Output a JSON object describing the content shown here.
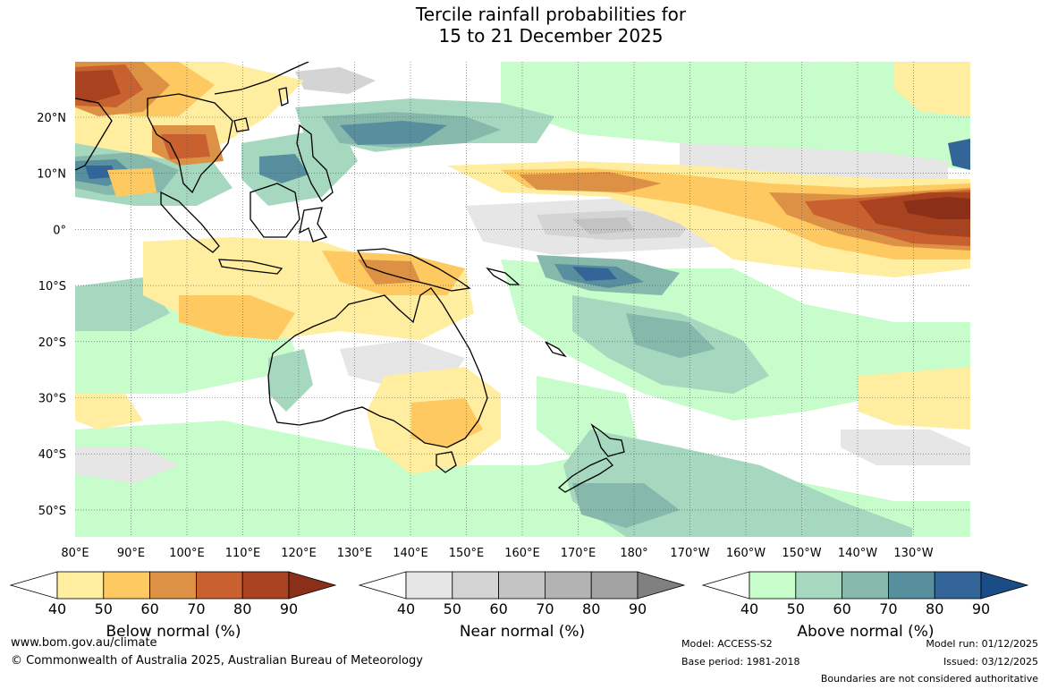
{
  "title": {
    "line1": "Tercile rainfall probabilities for",
    "line2": "15 to 21 December 2025"
  },
  "map": {
    "region": "Indo-Pacific",
    "lat_labels": [
      "20°N",
      "10°N",
      "0°",
      "10°S",
      "20°S",
      "30°S",
      "40°S",
      "50°S"
    ],
    "lon_labels": [
      "80°E",
      "90°E",
      "100°E",
      "110°E",
      "120°E",
      "130°E",
      "140°E",
      "150°E",
      "160°E",
      "170°E",
      "180°",
      "170°W",
      "160°W",
      "150°W",
      "140°W",
      "130°W"
    ],
    "grid": true,
    "legend_position": "bottom"
  },
  "colorbars": [
    {
      "label": "Below normal (%)",
      "ticks": [
        "40",
        "50",
        "60",
        "70",
        "80",
        "90"
      ],
      "colors": [
        "#ffffff",
        "#ffeda0",
        "#fec961",
        "#dd9145",
        "#c8602f",
        "#a9431f",
        "#8b2f18"
      ]
    },
    {
      "label": "Near normal (%)",
      "ticks": [
        "40",
        "50",
        "60",
        "70",
        "80",
        "90"
      ],
      "colors": [
        "#ffffff",
        "#e6e6e6",
        "#d4d4d4",
        "#c3c3c3",
        "#b3b3b3",
        "#a3a3a3",
        "#808080"
      ]
    },
    {
      "label": "Above normal (%)",
      "ticks": [
        "40",
        "50",
        "60",
        "70",
        "80",
        "90"
      ],
      "colors": [
        "#ffffff",
        "#c7fccb",
        "#a6d8bf",
        "#86b9ac",
        "#578f9f",
        "#336599",
        "#1a4d85"
      ]
    }
  ],
  "footer": {
    "url": "www.bom.gov.au/climate",
    "copyright": "© Commonwealth of Australia 2025, Australian Bureau of Meteorology",
    "model": "Model: ACCESS-S2",
    "base_period": "Base period: 1981-2018",
    "model_run": "Model run: 01/12/2025",
    "issued": "Issued: 03/12/2025",
    "disclaimer": "Boundaries are not considered authoritative"
  }
}
